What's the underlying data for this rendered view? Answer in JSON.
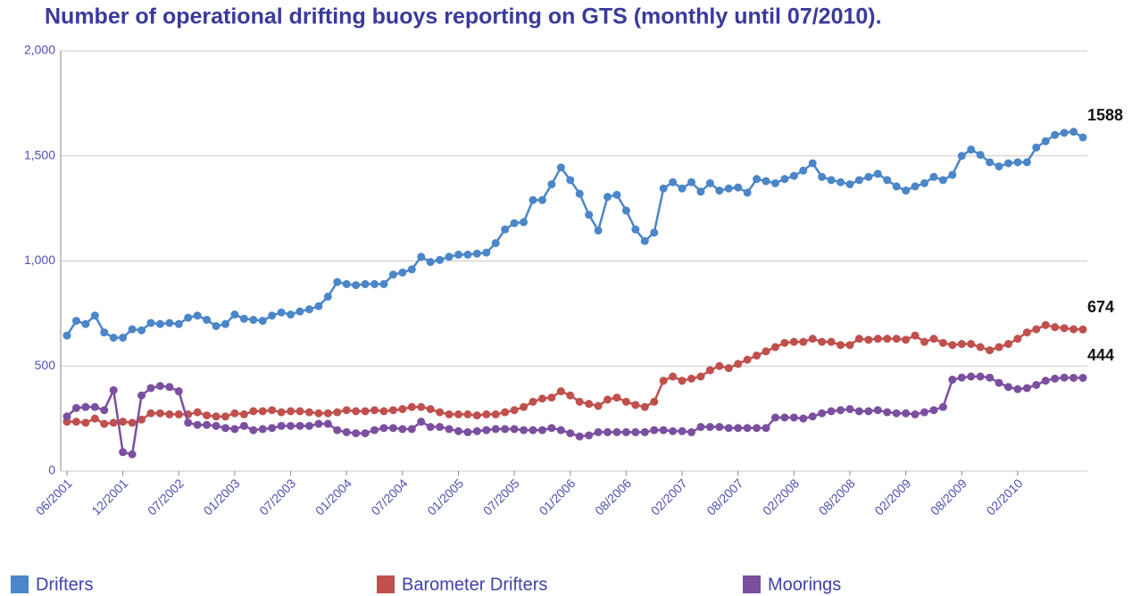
{
  "chart_data": {
    "type": "line",
    "title": "Number of operational drifting buoys reporting on GTS (monthly until 07/2010).",
    "categories": [
      "06/2001",
      null,
      null,
      null,
      null,
      null,
      "12/2001",
      null,
      null,
      null,
      null,
      null,
      "07/2002",
      null,
      null,
      null,
      null,
      null,
      "01/2003",
      null,
      null,
      null,
      null,
      null,
      "07/2003",
      null,
      null,
      null,
      null,
      null,
      "01/2004",
      null,
      null,
      null,
      null,
      null,
      "07/2004",
      null,
      null,
      null,
      null,
      null,
      "01/2005",
      null,
      null,
      null,
      null,
      null,
      "07/2005",
      null,
      null,
      null,
      null,
      null,
      "01/2006",
      null,
      null,
      null,
      null,
      null,
      "08/2006",
      null,
      null,
      null,
      null,
      null,
      "02/2007",
      null,
      null,
      null,
      null,
      null,
      "08/2007",
      null,
      null,
      null,
      null,
      null,
      "02/2008",
      null,
      null,
      null,
      null,
      null,
      "08/2008",
      null,
      null,
      null,
      null,
      null,
      "02/2009",
      null,
      null,
      null,
      null,
      null,
      "08/2009",
      null,
      null,
      null,
      null,
      null,
      "02/2010",
      null,
      null,
      null,
      null,
      null,
      null,
      null
    ],
    "series": [
      {
        "name": "Drifters",
        "color": "#4a86c8",
        "values": [
          645,
          715,
          700,
          740,
          660,
          635,
          635,
          675,
          670,
          705,
          700,
          705,
          700,
          730,
          740,
          720,
          690,
          700,
          745,
          725,
          720,
          715,
          740,
          755,
          745,
          760,
          770,
          785,
          830,
          900,
          890,
          885,
          890,
          890,
          890,
          935,
          945,
          960,
          1020,
          995,
          1005,
          1020,
          1030,
          1030,
          1035,
          1040,
          1085,
          1150,
          1180,
          1185,
          1290,
          1290,
          1365,
          1445,
          1385,
          1320,
          1220,
          1145,
          1305,
          1315,
          1240,
          1150,
          1095,
          1135,
          1345,
          1375,
          1345,
          1375,
          1330,
          1370,
          1335,
          1345,
          1350,
          1325,
          1390,
          1380,
          1370,
          1390,
          1405,
          1430,
          1465,
          1400,
          1385,
          1375,
          1365,
          1385,
          1400,
          1415,
          1385,
          1355,
          1335,
          1355,
          1370,
          1400,
          1385,
          1410,
          1500,
          1530,
          1505,
          1470,
          1450,
          1465,
          1470,
          1470,
          1540,
          1570,
          1600,
          1610,
          1615,
          1588
        ]
      },
      {
        "name": "Barometer Drifters",
        "color": "#c0504d",
        "values": [
          235,
          235,
          230,
          250,
          225,
          230,
          235,
          230,
          245,
          275,
          275,
          270,
          270,
          270,
          280,
          265,
          260,
          260,
          275,
          270,
          285,
          285,
          290,
          280,
          285,
          285,
          280,
          275,
          275,
          280,
          290,
          285,
          285,
          290,
          285,
          290,
          295,
          305,
          305,
          295,
          280,
          270,
          270,
          270,
          265,
          270,
          270,
          280,
          290,
          305,
          330,
          345,
          350,
          380,
          360,
          330,
          320,
          310,
          340,
          350,
          330,
          315,
          305,
          330,
          430,
          450,
          430,
          440,
          450,
          480,
          500,
          490,
          510,
          530,
          550,
          570,
          590,
          610,
          615,
          615,
          630,
          615,
          615,
          600,
          600,
          630,
          625,
          630,
          630,
          630,
          625,
          645,
          615,
          630,
          610,
          600,
          605,
          605,
          590,
          575,
          590,
          605,
          630,
          660,
          675,
          695,
          685,
          680,
          675,
          674
        ]
      },
      {
        "name": "Moorings",
        "color": "#7b4fa0",
        "values": [
          260,
          300,
          305,
          305,
          290,
          385,
          90,
          80,
          360,
          395,
          405,
          400,
          380,
          230,
          220,
          220,
          215,
          205,
          200,
          215,
          195,
          200,
          205,
          215,
          215,
          215,
          215,
          225,
          225,
          195,
          185,
          180,
          180,
          195,
          205,
          205,
          200,
          200,
          235,
          210,
          210,
          200,
          190,
          185,
          190,
          195,
          200,
          200,
          200,
          195,
          195,
          195,
          205,
          195,
          180,
          165,
          170,
          185,
          185,
          185,
          185,
          185,
          185,
          195,
          195,
          190,
          190,
          185,
          210,
          210,
          210,
          205,
          205,
          205,
          205,
          205,
          255,
          255,
          255,
          250,
          260,
          275,
          285,
          290,
          295,
          285,
          285,
          290,
          280,
          275,
          275,
          270,
          280,
          290,
          305,
          435,
          445,
          450,
          450,
          445,
          420,
          400,
          390,
          395,
          410,
          430,
          440,
          445,
          444,
          444
        ]
      }
    ],
    "ylim": [
      0,
      2000
    ],
    "yticks": [
      0,
      500,
      {
        "value": 1000,
        "label": "1,000"
      },
      {
        "value": 1500,
        "label": "1,500"
      },
      {
        "value": 2000,
        "label": "2,000"
      }
    ],
    "grid": true
  }
}
